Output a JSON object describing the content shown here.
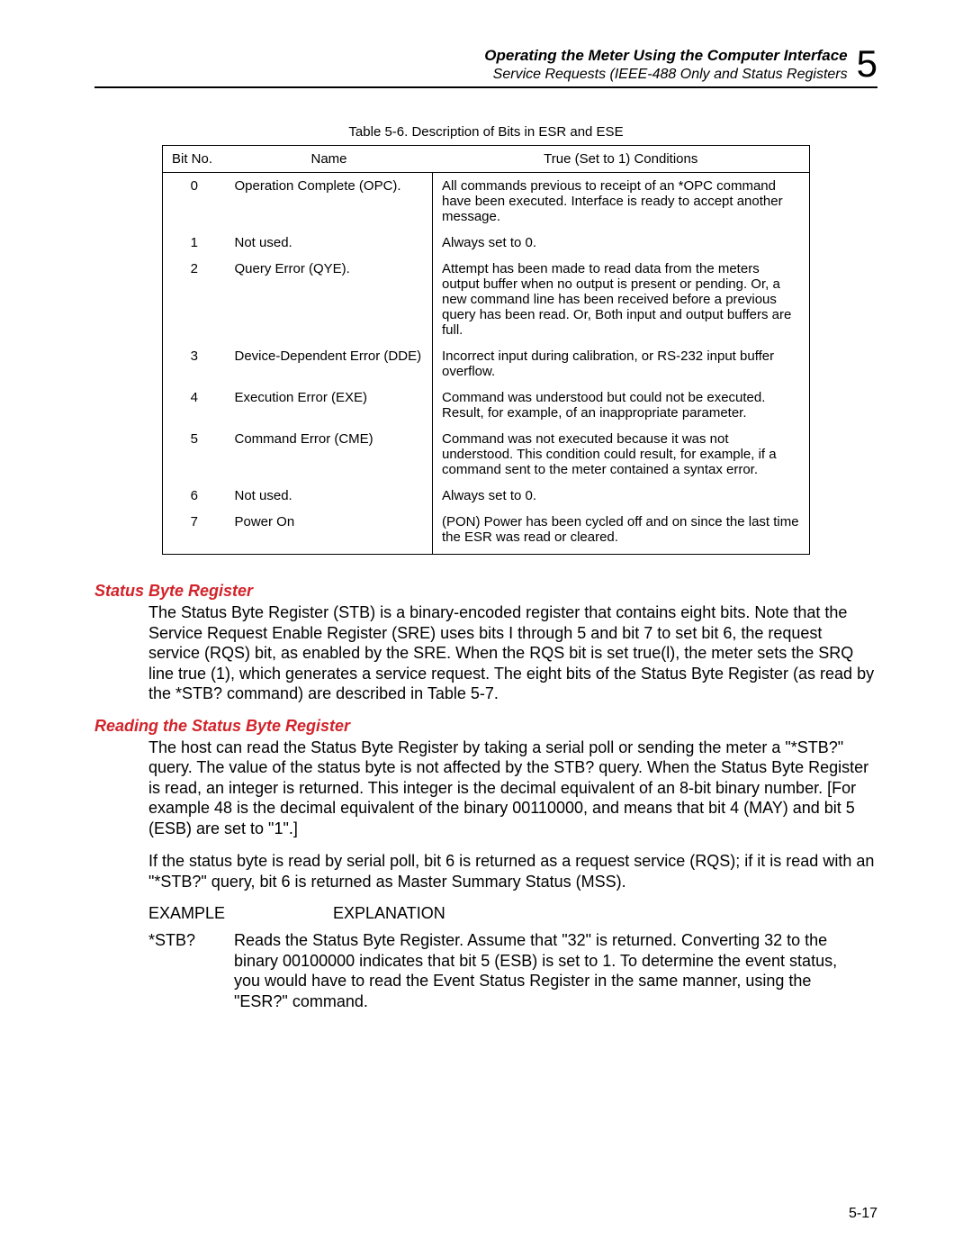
{
  "header": {
    "title": "Operating the Meter Using the Computer Interface",
    "subtitle": "Service Requests (IEEE-488 Only and Status Registers",
    "chapter": "5"
  },
  "table": {
    "caption": "Table 5-6. Description of Bits in ESR and ESE",
    "columns": [
      "Bit No.",
      "Name",
      "True (Set to 1) Conditions"
    ],
    "rows": [
      [
        "0",
        "Operation Complete (OPC).",
        "All commands previous to receipt of an *OPC command have been executed. Interface is ready to accept another message."
      ],
      [
        "1",
        "Not used.",
        "Always set to 0."
      ],
      [
        "2",
        "Query Error (QYE).",
        "Attempt has been made to read data from the meters output buffer when no output is present or pending. Or, a new command line has been received before a previous query has been read. Or, Both input and output buffers are full."
      ],
      [
        "3",
        "Device-Dependent Error (DDE)",
        "Incorrect input during calibration, or RS-232 input buffer overflow."
      ],
      [
        "4",
        "Execution Error (EXE)",
        "Command was understood but could not be executed. Result, for example, of an inappropriate parameter."
      ],
      [
        "5",
        "Command Error (CME)",
        "Command was not executed because it was not understood. This condition could result, for example, if a command sent to the meter contained a syntax error."
      ],
      [
        "6",
        "Not used.",
        "Always set to 0."
      ],
      [
        "7",
        "Power On",
        "(PON) Power has been cycled off and on since the last time the ESR was read or cleared."
      ]
    ]
  },
  "sections": {
    "s1": {
      "heading": "Status Byte Register",
      "p1": "The Status Byte Register (STB) is a binary-encoded register that contains eight bits. Note that the Service Request Enable Register (SRE) uses bits I through 5 and bit 7 to set bit 6, the request service (RQS) bit, as enabled by the SRE. When the RQS bit is set true(l), the meter sets the SRQ line true (1), which generates a service request. The eight bits of the Status Byte Register (as read by the *STB? command) are described in Table 5-7."
    },
    "s2": {
      "heading": "Reading the Status Byte Register",
      "p1": "The host can read the Status Byte Register by taking a serial poll or sending the meter a \"*STB?\" query. The value of the status byte is not affected by the STB? query. When the Status Byte Register is read, an integer is returned. This integer is the decimal equivalent of an 8-bit binary number. [For example 48 is the decimal equivalent of the binary 00110000, and means that bit 4 (MAY) and bit 5 (ESB) are set to \"1\".]",
      "p2": "If the status byte is read by serial poll, bit 6 is returned as a request service (RQS); if it is read with an \"*STB?\" query, bit 6 is returned as Master Summary Status (MSS).",
      "ex_label1": "EXAMPLE",
      "ex_label2": "EXPLANATION",
      "ex_cmd": "*STB?",
      "ex_text": "Reads the Status Byte Register. Assume that \"32\" is returned. Converting 32 to the binary 00100000 indicates that bit 5 (ESB) is set to 1. To determine the event status, you would have to read the Event Status Register in the same manner, using the \"ESR?\" command."
    }
  },
  "page_number": "5-17"
}
